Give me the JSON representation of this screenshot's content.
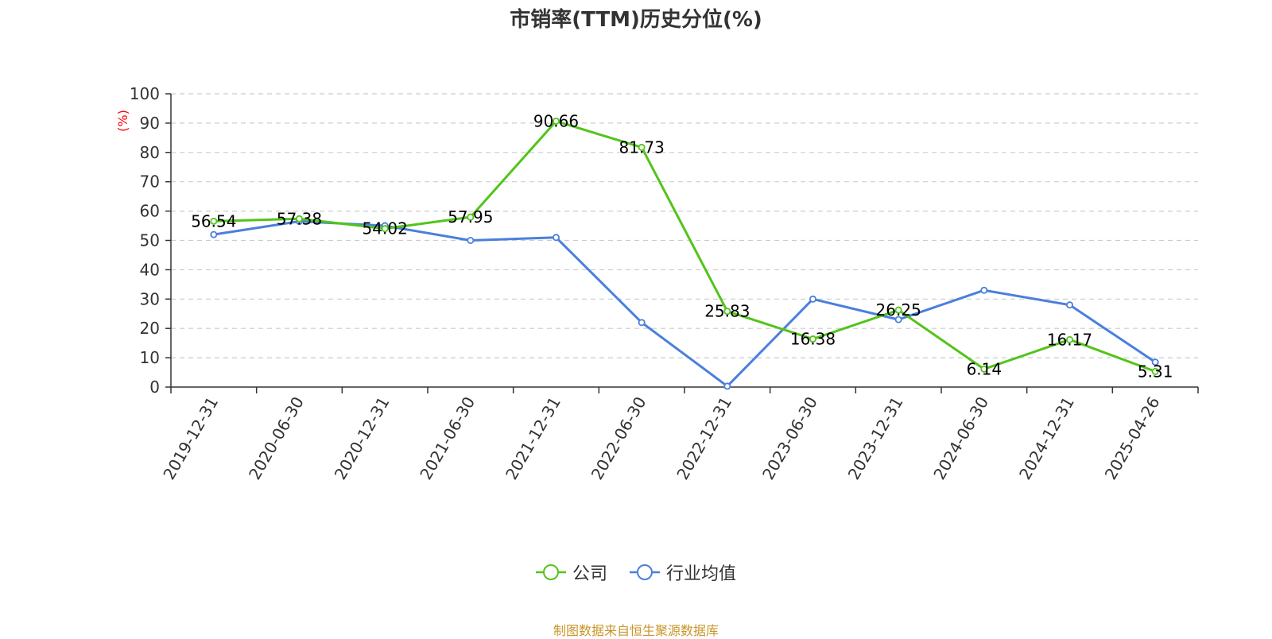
{
  "title": "市销率(TTM)历史分位(%)",
  "source_note": "制图数据来自恒生聚源数据库",
  "colors": {
    "company": "#52c41a",
    "industry": "#4a7fdc",
    "axis_unit": "#ff0000",
    "source_note": "#c8962a",
    "grid": "#cccccc"
  },
  "chart_data": {
    "type": "line",
    "title": "市销率(TTM)历史分位(%)",
    "ylabel": "(%)",
    "ylim": [
      0,
      100
    ],
    "yticks": [
      "0",
      "10",
      "20",
      "30",
      "40",
      "50",
      "60",
      "70",
      "80",
      "90",
      "100"
    ],
    "grid": "horizontal-dashed",
    "legend_position": "bottom-center",
    "categories": [
      "2019-12-31",
      "2020-06-30",
      "2020-12-31",
      "2021-06-30",
      "2021-12-31",
      "2022-06-30",
      "2022-12-31",
      "2023-06-30",
      "2023-12-31",
      "2024-06-30",
      "2024-12-31",
      "2025-04-26"
    ],
    "series": [
      {
        "name": "公司",
        "values": [
          56.54,
          57.38,
          54.02,
          57.95,
          90.66,
          81.73,
          25.83,
          16.38,
          26.25,
          6.14,
          16.17,
          5.31
        ],
        "labels": [
          "56.54",
          "57.38",
          "54.02",
          "57.95",
          "90.66",
          "81.73",
          "25.83",
          "16.38",
          "26.25",
          "6.14",
          "16.17",
          "5.31"
        ]
      },
      {
        "name": "行业均值",
        "values": [
          52,
          56.5,
          55,
          50,
          51,
          22,
          0.3,
          30,
          23,
          33,
          28,
          8.5
        ]
      }
    ]
  }
}
